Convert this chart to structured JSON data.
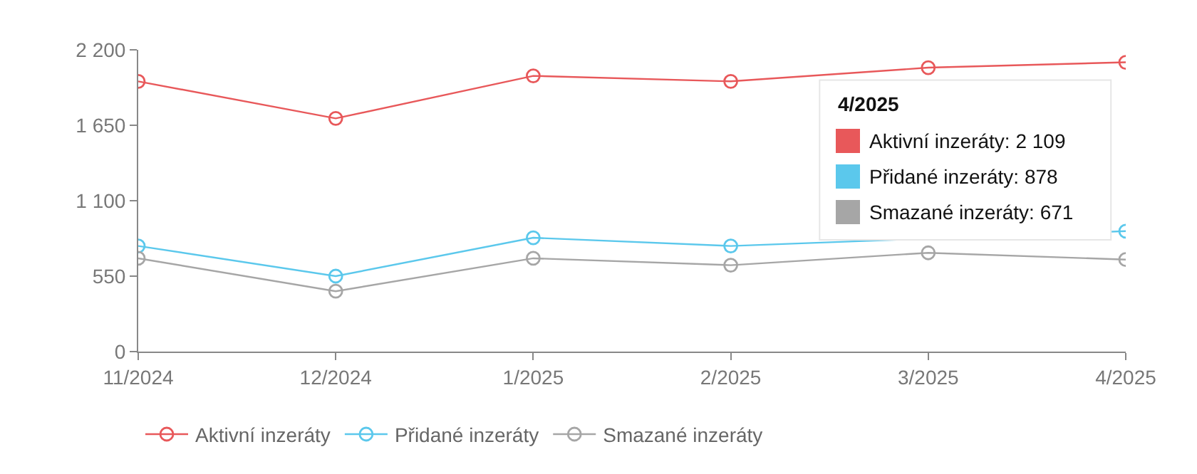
{
  "chart_data": {
    "type": "line",
    "categories": [
      "11/2024",
      "12/2024",
      "1/2025",
      "2/2025",
      "3/2025",
      "4/2025"
    ],
    "series": [
      {
        "name": "Aktivní inzeráty",
        "color": "#e8585a",
        "values": [
          1970,
          1700,
          2010,
          1970,
          2070,
          2109
        ]
      },
      {
        "name": "Přidané inzeráty",
        "color": "#5bc8ec",
        "values": [
          770,
          550,
          830,
          770,
          null,
          878
        ]
      },
      {
        "name": "Smazané inzeráty",
        "color": "#a6a6a6",
        "values": [
          680,
          440,
          680,
          630,
          720,
          671
        ]
      }
    ],
    "ylim": [
      0,
      2200
    ],
    "yticks": [
      0,
      {
        "value": 550,
        "label": "550"
      },
      {
        "value": 1100,
        "label": "1 100"
      },
      {
        "value": 1650,
        "label": "1 650"
      },
      {
        "value": 2200,
        "label": "2 200"
      }
    ],
    "annotations": [
      "4/2025",
      "Aktivní inzeráty: 2 109",
      "Přidané inzeráty: 878",
      "Smazané inzeráty: 671"
    ],
    "legend": "bottom left",
    "marker": "circle",
    "line_style": "solid"
  }
}
